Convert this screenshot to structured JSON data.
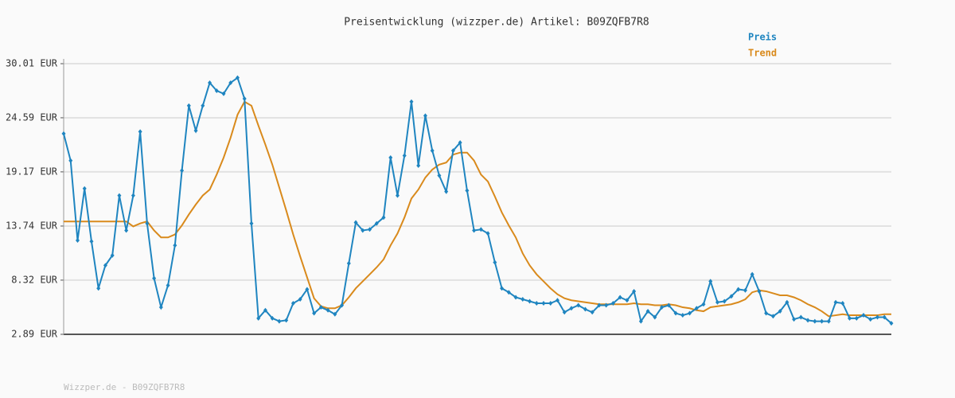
{
  "chart_data": {
    "type": "line",
    "title": "Preisentwicklung (wizzper.de) Artikel: B09ZQFB7R8",
    "footer": "Wizzper.de - B09ZQFB7R8",
    "ylim": [
      2.89,
      30.01
    ],
    "yticks": [
      {
        "value": 2.89,
        "label": "2.89 EUR"
      },
      {
        "value": 8.32,
        "label": "8.32 EUR"
      },
      {
        "value": 13.74,
        "label": "13.74 EUR"
      },
      {
        "value": 19.17,
        "label": "19.17 EUR"
      },
      {
        "value": 24.59,
        "label": "24.59 EUR"
      },
      {
        "value": 30.01,
        "label": "30.01 EUR"
      }
    ],
    "grid": true,
    "series": [
      {
        "name": "Preis",
        "color": "#1f85c0",
        "markers": true,
        "values": [
          23,
          20.3,
          12.3,
          17.5,
          12.2,
          7.5,
          9.8,
          10.8,
          16.8,
          13.3,
          16.8,
          23.2,
          14,
          8.5,
          5.6,
          7.8,
          11.8,
          19.3,
          25.8,
          23.3,
          25.8,
          28.1,
          27.3,
          27,
          28.1,
          28.6,
          26.5,
          14,
          4.5,
          5.3,
          4.5,
          4.2,
          4.3,
          6,
          6.4,
          7.4,
          5,
          5.6,
          5.3,
          4.9,
          5.8,
          10,
          14.1,
          13.3,
          13.4,
          14,
          14.6,
          20.6,
          16.8,
          20.8,
          26.2,
          19.8,
          24.8,
          21.3,
          18.8,
          17.2,
          21.3,
          22.1,
          17.3,
          13.3,
          13.4,
          13,
          10.1,
          7.5,
          7.1,
          6.6,
          6.4,
          6.2,
          6,
          6,
          6,
          6.3,
          5.1,
          5.5,
          5.8,
          5.4,
          5.1,
          5.8,
          5.8,
          6,
          6.6,
          6.3,
          7.2,
          4.2,
          5.2,
          4.6,
          5.6,
          5.8,
          5,
          4.8,
          5,
          5.5,
          5.9,
          8.2,
          6.1,
          6.2,
          6.7,
          7.4,
          7.3,
          8.9,
          7.2,
          5,
          4.7,
          5.2,
          6.1,
          4.4,
          4.6,
          4.3,
          4.2,
          4.2,
          4.2,
          6.1,
          6,
          4.5,
          4.5,
          4.8,
          4.4,
          4.6,
          4.6,
          4
        ]
      },
      {
        "name": "Trend",
        "color": "#d98a1c",
        "markers": false,
        "values": [
          14.2,
          14.2,
          14.2,
          14.2,
          14.2,
          14.2,
          14.2,
          14.2,
          14.2,
          14.2,
          13.7,
          14,
          14.2,
          13.3,
          12.6,
          12.6,
          12.9,
          13.8,
          14.9,
          15.9,
          16.8,
          17.4,
          18.9,
          20.6,
          22.6,
          24.9,
          26.2,
          25.8,
          23.8,
          21.9,
          19.9,
          17.6,
          15.3,
          12.9,
          10.7,
          8.6,
          6.5,
          5.7,
          5.5,
          5.5,
          5.8,
          6.6,
          7.5,
          8.2,
          8.9,
          9.6,
          10.4,
          11.8,
          13,
          14.6,
          16.5,
          17.4,
          18.6,
          19.4,
          19.9,
          20.1,
          20.9,
          21.1,
          21.1,
          20.3,
          18.9,
          18.2,
          16.7,
          15.1,
          13.8,
          12.6,
          11,
          9.8,
          8.9,
          8.2,
          7.5,
          6.9,
          6.5,
          6.3,
          6.2,
          6.1,
          6,
          5.9,
          5.9,
          5.9,
          5.9,
          5.9,
          6,
          5.9,
          5.9,
          5.8,
          5.8,
          5.9,
          5.8,
          5.6,
          5.5,
          5.3,
          5.2,
          5.6,
          5.7,
          5.8,
          5.9,
          6.1,
          6.4,
          7.1,
          7.3,
          7.2,
          7,
          6.8,
          6.8,
          6.6,
          6.3,
          5.9,
          5.6,
          5.2,
          4.7,
          4.8,
          4.9,
          4.8,
          4.8,
          4.8,
          4.8,
          4.8,
          4.9,
          4.9
        ]
      }
    ]
  }
}
